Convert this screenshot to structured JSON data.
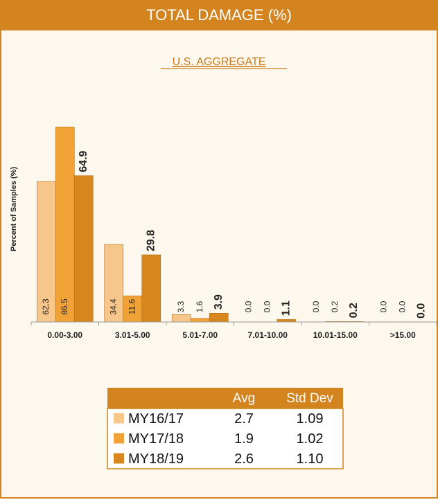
{
  "chart_data": {
    "type": "bar",
    "title": "TOTAL DAMAGE (%)",
    "subtitle": "U.S. AGGREGATE",
    "y_label": "Percent of Samples (%)",
    "categories": [
      "0.00-3.00",
      "3.01-5.00",
      "5.01-7.00",
      "7.01-10.00",
      "10.01-15.00",
      ">15.00"
    ],
    "series": [
      {
        "name": "MY16/17",
        "color": "#f6c68a",
        "values": [
          62.3,
          34.4,
          3.3,
          0,
          0,
          0
        ],
        "value_labels": [
          "62.3",
          "34.4",
          "3.3",
          "0.0",
          "0.0",
          "0.0"
        ]
      },
      {
        "name": "MY17/18",
        "color": "#f0a236",
        "values": [
          86.5,
          11.6,
          1.6,
          0,
          0.2,
          0
        ],
        "value_labels": [
          "86.5",
          "11.6",
          "1.6",
          "0.0",
          "0.2",
          "0.0"
        ]
      },
      {
        "name": "MY18/19",
        "color": "#d8861e",
        "values": [
          64.9,
          29.8,
          3.9,
          1.1,
          0.2,
          0
        ],
        "value_labels": [
          "64.9",
          "29.8",
          "3.9",
          "1.1",
          "0.2",
          "0.0"
        ]
      }
    ],
    "ylim": [
      0,
      90
    ]
  },
  "table": {
    "header": [
      "Avg",
      "Std Dev"
    ],
    "rows": [
      [
        "2.7",
        "1.09"
      ],
      [
        "1.9",
        "1.02"
      ],
      [
        "2.6",
        "1.10"
      ]
    ]
  }
}
